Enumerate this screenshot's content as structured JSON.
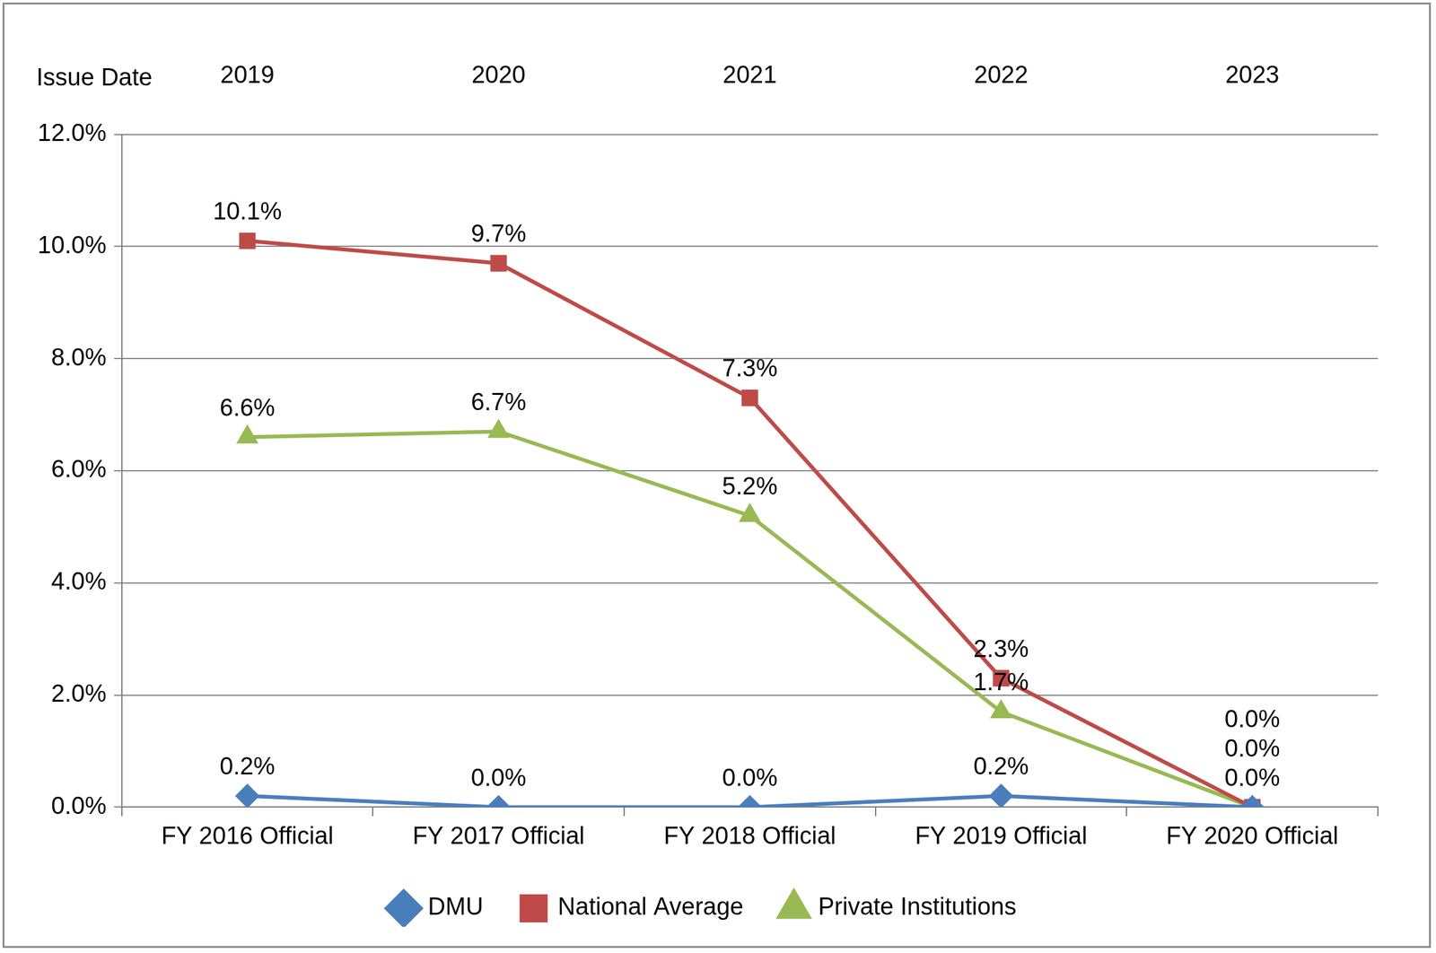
{
  "chart_data": {
    "type": "line",
    "categories": [
      "FY 2016 Official",
      "FY 2017 Official",
      "FY 2018 Official",
      "FY 2019 Official",
      "FY 2020 Official"
    ],
    "top_axis": {
      "title": "Issue Date",
      "categories": [
        "2019",
        "2020",
        "2021",
        "2022",
        "2023"
      ]
    },
    "series": [
      {
        "name": "DMU",
        "color": "#4a7ebb",
        "marker": "diamond",
        "values": [
          0.2,
          0.0,
          0.0,
          0.2,
          0.0
        ],
        "value_labels": [
          "0.2%",
          "0.0%",
          "0.0%",
          "0.2%",
          "0.0%"
        ]
      },
      {
        "name": "National Average",
        "color": "#be4b48",
        "marker": "square",
        "values": [
          10.1,
          9.7,
          7.3,
          2.3,
          0.0
        ],
        "value_labels": [
          "10.1%",
          "9.7%",
          "7.3%",
          "2.3%",
          "0.0%"
        ]
      },
      {
        "name": "Private Institutions",
        "color": "#98b954",
        "marker": "triangle",
        "values": [
          6.6,
          6.7,
          5.2,
          1.7,
          0.0
        ],
        "value_labels": [
          "6.6%",
          "6.7%",
          "5.2%",
          "1.7%",
          "0.0%"
        ]
      }
    ],
    "ylim": [
      0,
      12
    ],
    "yticks": [
      {
        "value": 0,
        "label": "0.0%"
      },
      {
        "value": 2,
        "label": "2.0%"
      },
      {
        "value": 4,
        "label": "4.0%"
      },
      {
        "value": 6,
        "label": "6.0%"
      },
      {
        "value": 8,
        "label": "8.0%"
      },
      {
        "value": 10,
        "label": "10.0%"
      },
      {
        "value": 12,
        "label": "12.0%"
      }
    ],
    "grid": true,
    "legend": "bottom",
    "data_labels": true
  }
}
